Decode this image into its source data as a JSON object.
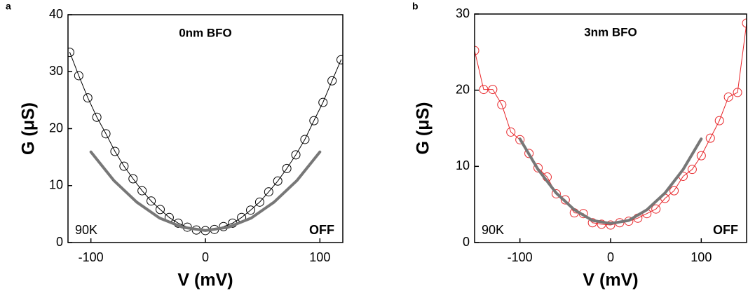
{
  "chart_data": [
    {
      "type": "line",
      "panel_label": "a",
      "title": "0nm BFO",
      "annotation_left": "90K",
      "annotation_right": "OFF",
      "x_label": "V (mV)",
      "y_label": "G (μS)",
      "xlim": [
        -120,
        120
      ],
      "ylim": [
        0,
        40
      ],
      "xticks": [
        -100,
        0,
        100
      ],
      "yticks": [
        0,
        10,
        20,
        30,
        40
      ],
      "series": [
        {
          "color": "#000000",
          "marker": "open-circle",
          "x": [
            -118.5,
            -110.6,
            -102.7,
            -94.8,
            -86.9,
            -79,
            -71.1,
            -63.2,
            -55.3,
            -47.4,
            -39.5,
            -31.6,
            -23.7,
            -15.8,
            -7.9,
            0,
            7.9,
            15.8,
            23.7,
            31.6,
            39.5,
            47.4,
            55.3,
            63.2,
            71.1,
            79,
            86.9,
            94.8,
            102.7,
            110.6,
            118.5
          ],
          "values": [
            33.4,
            29.3,
            25.4,
            22.0,
            19.1,
            16.0,
            13.4,
            11.2,
            9.1,
            7.3,
            5.8,
            4.4,
            3.4,
            2.7,
            2.2,
            2.1,
            2.3,
            2.8,
            3.4,
            4.4,
            5.7,
            7.1,
            8.9,
            10.8,
            13.0,
            15.4,
            18.1,
            21.4,
            24.6,
            28.4,
            32.1
          ]
        },
        {
          "color": "#777777",
          "marker": "none",
          "x": [
            -100,
            -80,
            -60,
            -40,
            -20,
            0,
            20,
            40,
            60,
            80,
            100
          ],
          "values": [
            15.9,
            10.9,
            7.1,
            4.3,
            2.7,
            2.1,
            2.7,
            4.3,
            7.1,
            10.9,
            15.9
          ]
        }
      ]
    },
    {
      "type": "line",
      "panel_label": "b",
      "title": "3nm BFO",
      "annotation_left": "90K",
      "annotation_right": "OFF",
      "x_label": "V (mV)",
      "y_label": "G (μS)",
      "xlim": [
        -150,
        150
      ],
      "ylim": [
        0,
        30
      ],
      "xticks": [
        -100,
        0,
        100
      ],
      "yticks": [
        0,
        10,
        20,
        30
      ],
      "series": [
        {
          "color": "#e8262a",
          "marker": "open-circle",
          "x": [
            -150,
            -140,
            -130,
            -120,
            -110,
            -100,
            -90,
            -80,
            -70,
            -60,
            -50,
            -40,
            -30,
            -20,
            -10,
            0,
            10,
            20,
            30,
            40,
            50,
            60,
            70,
            80,
            90,
            100,
            110,
            120,
            130,
            140,
            150
          ],
          "values": [
            25.2,
            20.1,
            20.1,
            18.1,
            14.5,
            13.5,
            11.7,
            9.8,
            8.6,
            6.4,
            5.6,
            3.9,
            3.8,
            2.6,
            2.4,
            2.3,
            2.6,
            2.8,
            3.2,
            3.8,
            4.4,
            5.8,
            6.8,
            8.7,
            9.6,
            11.4,
            13.7,
            16.0,
            19.1,
            19.7,
            28.8
          ]
        },
        {
          "color": "#777777",
          "marker": "none",
          "x": [
            -100,
            -80,
            -60,
            -40,
            -20,
            0,
            20,
            40,
            60,
            80,
            100
          ],
          "values": [
            13.6,
            9.6,
            6.5,
            4.3,
            2.9,
            2.5,
            2.9,
            4.3,
            6.5,
            9.6,
            13.6
          ]
        }
      ]
    }
  ]
}
